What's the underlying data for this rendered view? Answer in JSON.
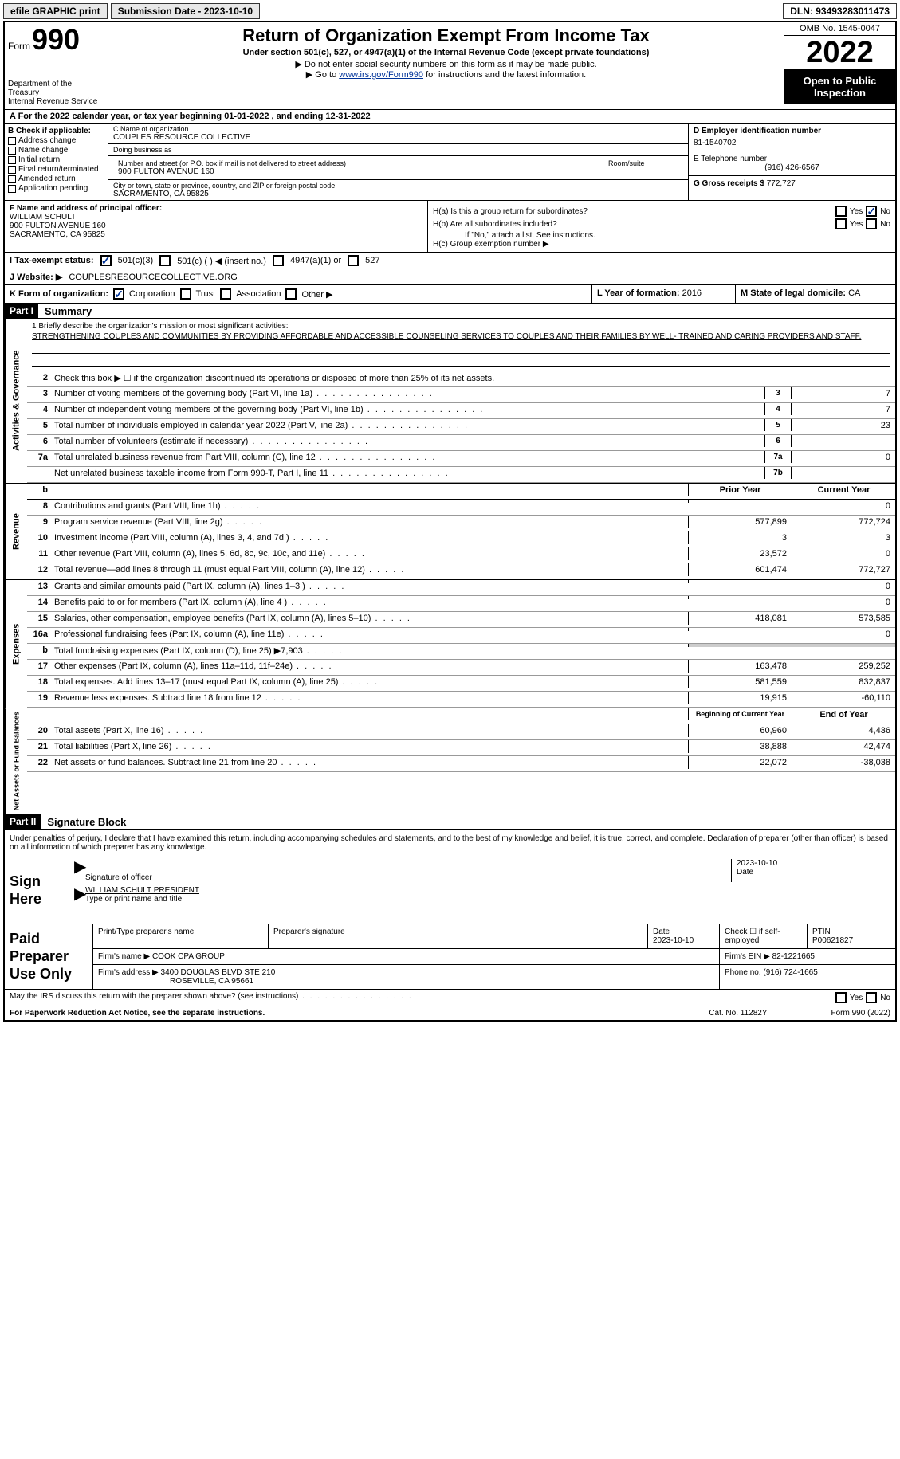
{
  "topbar": {
    "efile": "efile GRAPHIC print",
    "submission": "Submission Date - 2023-10-10",
    "dln": "DLN: 93493283011473"
  },
  "header": {
    "form_word": "Form",
    "form_num": "990",
    "dept": "Department of the Treasury\nInternal Revenue Service",
    "title": "Return of Organization Exempt From Income Tax",
    "subtitle": "Under section 501(c), 527, or 4947(a)(1) of the Internal Revenue Code (except private foundations)",
    "line1": "▶ Do not enter social security numbers on this form as it may be made public.",
    "line2_pre": "▶ Go to ",
    "line2_link": "www.irs.gov/Form990",
    "line2_post": " for instructions and the latest information.",
    "omb": "OMB No. 1545-0047",
    "year": "2022",
    "pub": "Open to Public Inspection"
  },
  "row_a": "A  For the 2022 calendar year, or tax year beginning 01-01-2022    , and ending 12-31-2022",
  "box_b": {
    "label": "B Check if applicable:",
    "items": [
      "Address change",
      "Name change",
      "Initial return",
      "Final return/terminated",
      "Amended return",
      "Application pending"
    ]
  },
  "box_c": {
    "name_label": "C Name of organization",
    "name": "COUPLES RESOURCE COLLECTIVE",
    "dba_label": "Doing business as",
    "addr_label": "Number and street (or P.O. box if mail is not delivered to street address)",
    "room_label": "Room/suite",
    "addr": "900 FULTON AVENUE 160",
    "city_label": "City or town, state or province, country, and ZIP or foreign postal code",
    "city": "SACRAMENTO, CA  95825"
  },
  "box_d": {
    "ein_label": "D Employer identification number",
    "ein": "81-1540702",
    "tel_label": "E Telephone number",
    "tel": "(916) 426-6567",
    "gross_label": "G Gross receipts $",
    "gross": "772,727"
  },
  "box_f": {
    "label": "F Name and address of principal officer:",
    "name": "WILLIAM SCHULT",
    "addr1": "900 FULTON AVENUE 160",
    "addr2": "SACRAMENTO, CA  95825"
  },
  "box_h": {
    "ha": "H(a)  Is this a group return for subordinates?",
    "hb": "H(b)  Are all subordinates included?",
    "hb_note": "If \"No,\" attach a list. See instructions.",
    "hc": "H(c)  Group exemption number ▶"
  },
  "row_i": {
    "label": "I    Tax-exempt status:",
    "opts": [
      "501(c)(3)",
      "501(c) (  ) ◀ (insert no.)",
      "4947(a)(1) or",
      "527"
    ]
  },
  "row_j": {
    "label": "J   Website: ▶",
    "val": "COUPLESRESOURCECOLLECTIVE.ORG"
  },
  "row_k": {
    "label": "K Form of organization:",
    "opts": [
      "Corporation",
      "Trust",
      "Association",
      "Other ▶"
    ],
    "l_label": "L Year of formation:",
    "l_val": "2016",
    "m_label": "M State of legal domicile:",
    "m_val": "CA"
  },
  "parts": {
    "p1": "Part I",
    "p1_title": "Summary",
    "p2": "Part II",
    "p2_title": "Signature Block"
  },
  "sections": {
    "s1": "Activities & Governance",
    "s2": "Revenue",
    "s3": "Expenses",
    "s4": "Net Assets or Fund Balances"
  },
  "mission": {
    "label": "1   Briefly describe the organization's mission or most significant activities:",
    "text": "STRENGTHENING COUPLES AND COMMUNITIES BY PROVIDING AFFORDABLE AND ACCESSIBLE COUNSELING SERVICES TO COUPLES AND THEIR FAMILIES BY WELL- TRAINED AND CARING PROVIDERS AND STAFF."
  },
  "gov_lines": [
    {
      "n": "2",
      "t": "Check this box ▶ ☐ if the organization discontinued its operations or disposed of more than 25% of its net assets."
    },
    {
      "n": "3",
      "t": "Number of voting members of the governing body (Part VI, line 1a)",
      "dots": true,
      "box": "3",
      "v": "7"
    },
    {
      "n": "4",
      "t": "Number of independent voting members of the governing body (Part VI, line 1b)",
      "dots": true,
      "box": "4",
      "v": "7"
    },
    {
      "n": "5",
      "t": "Total number of individuals employed in calendar year 2022 (Part V, line 2a)",
      "dots": true,
      "box": "5",
      "v": "23"
    },
    {
      "n": "6",
      "t": "Total number of volunteers (estimate if necessary)",
      "dots": true,
      "box": "6",
      "v": ""
    },
    {
      "n": "7a",
      "t": "Total unrelated business revenue from Part VIII, column (C), line 12",
      "dots": true,
      "box": "7a",
      "v": "0"
    },
    {
      "n": "",
      "t": "Net unrelated business taxable income from Form 990-T, Part I, line 11",
      "dots": true,
      "box": "7b",
      "v": ""
    }
  ],
  "hdr_prior": "Prior Year",
  "hdr_current": "Current Year",
  "rev_lines": [
    {
      "n": "8",
      "t": "Contributions and grants (Part VIII, line 1h)",
      "p": "",
      "c": "0"
    },
    {
      "n": "9",
      "t": "Program service revenue (Part VIII, line 2g)",
      "p": "577,899",
      "c": "772,724"
    },
    {
      "n": "10",
      "t": "Investment income (Part VIII, column (A), lines 3, 4, and 7d )",
      "p": "3",
      "c": "3"
    },
    {
      "n": "11",
      "t": "Other revenue (Part VIII, column (A), lines 5, 6d, 8c, 9c, 10c, and 11e)",
      "p": "23,572",
      "c": "0"
    },
    {
      "n": "12",
      "t": "Total revenue—add lines 8 through 11 (must equal Part VIII, column (A), line 12)",
      "p": "601,474",
      "c": "772,727"
    }
  ],
  "exp_lines": [
    {
      "n": "13",
      "t": "Grants and similar amounts paid (Part IX, column (A), lines 1–3 )",
      "p": "",
      "c": "0"
    },
    {
      "n": "14",
      "t": "Benefits paid to or for members (Part IX, column (A), line 4 )",
      "p": "",
      "c": "0"
    },
    {
      "n": "15",
      "t": "Salaries, other compensation, employee benefits (Part IX, column (A), lines 5–10)",
      "p": "418,081",
      "c": "573,585"
    },
    {
      "n": "16a",
      "t": "Professional fundraising fees (Part IX, column (A), line 11e)",
      "p": "",
      "c": "0"
    },
    {
      "n": "b",
      "t": "Total fundraising expenses (Part IX, column (D), line 25) ▶7,903",
      "shade": true
    },
    {
      "n": "17",
      "t": "Other expenses (Part IX, column (A), lines 11a–11d, 11f–24e)",
      "p": "163,478",
      "c": "259,252"
    },
    {
      "n": "18",
      "t": "Total expenses. Add lines 13–17 (must equal Part IX, column (A), line 25)",
      "p": "581,559",
      "c": "832,837"
    },
    {
      "n": "19",
      "t": "Revenue less expenses. Subtract line 18 from line 12",
      "p": "19,915",
      "c": "-60,110"
    }
  ],
  "hdr_begin": "Beginning of Current Year",
  "hdr_end": "End of Year",
  "net_lines": [
    {
      "n": "20",
      "t": "Total assets (Part X, line 16)",
      "p": "60,960",
      "c": "4,436"
    },
    {
      "n": "21",
      "t": "Total liabilities (Part X, line 26)",
      "p": "38,888",
      "c": "42,474"
    },
    {
      "n": "22",
      "t": "Net assets or fund balances. Subtract line 21 from line 20",
      "p": "22,072",
      "c": "-38,038"
    }
  ],
  "sig": {
    "declaration": "Under penalties of perjury, I declare that I have examined this return, including accompanying schedules and statements, and to the best of my knowledge and belief, it is true, correct, and complete. Declaration of preparer (other than officer) is based on all information of which preparer has any knowledge.",
    "here": "Sign Here",
    "officer_sig": "Signature of officer",
    "date_label": "Date",
    "date_val": "2023-10-10",
    "officer_name": "WILLIAM SCHULT  PRESIDENT",
    "officer_type": "Type or print name and title"
  },
  "paid": {
    "label": "Paid Preparer Use Only",
    "prep_name_label": "Print/Type preparer's name",
    "prep_sig_label": "Preparer's signature",
    "prep_date_label": "Date",
    "prep_date": "2023-10-10",
    "self_label": "Check ☐ if self-employed",
    "ptin_label": "PTIN",
    "ptin": "P00621827",
    "firm_name_label": "Firm's name    ▶",
    "firm_name": "COOK CPA GROUP",
    "firm_ein_label": "Firm's EIN ▶",
    "firm_ein": "82-1221665",
    "firm_addr_label": "Firm's address ▶",
    "firm_addr1": "3400 DOUGLAS BLVD STE 210",
    "firm_addr2": "ROSEVILLE, CA  95661",
    "phone_label": "Phone no.",
    "phone": "(916) 724-1665"
  },
  "irs_line": "May the IRS discuss this return with the preparer shown above? (see instructions)",
  "footer": {
    "left": "For Paperwork Reduction Act Notice, see the separate instructions.",
    "mid": "Cat. No. 11282Y",
    "right": "Form 990 (2022)"
  },
  "yn": {
    "yes": "Yes",
    "no": "No"
  },
  "colors": {
    "accent": "#003399",
    "black": "#000000"
  }
}
